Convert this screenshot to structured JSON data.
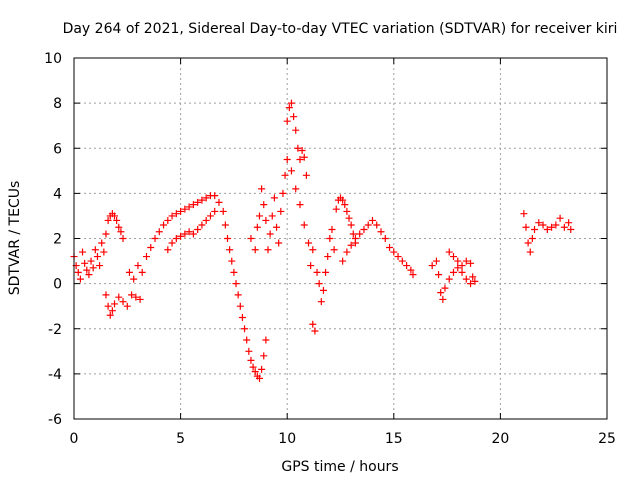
{
  "chart_data": {
    "type": "scatter",
    "title": "Day 264 of 2021, Sidereal Day-to-day VTEC variation (SDTVAR) for receiver kiri",
    "xlabel": "GPS time / hours",
    "ylabel": "SDTVAR / TECUs",
    "xlim": [
      0,
      25
    ],
    "ylim": [
      -6,
      10
    ],
    "xticks": [
      "0",
      "5",
      "10",
      "15",
      "20",
      "25"
    ],
    "yticks": [
      "-6",
      "-4",
      "-2",
      "0",
      "2",
      "4",
      "6",
      "8",
      "10"
    ],
    "xtick_values": [
      0,
      5,
      10,
      15,
      20,
      25
    ],
    "ytick_values": [
      -6,
      -4,
      -2,
      0,
      2,
      4,
      6,
      8,
      10
    ],
    "grid": true,
    "marker": "plus",
    "color": "#ff0000",
    "series": [
      {
        "name": "SDTVAR",
        "points": [
          [
            0.0,
            1.2
          ],
          [
            0.1,
            0.8
          ],
          [
            0.2,
            0.5
          ],
          [
            0.3,
            0.2
          ],
          [
            0.4,
            1.4
          ],
          [
            0.5,
            0.9
          ],
          [
            0.6,
            0.6
          ],
          [
            0.7,
            0.4
          ],
          [
            0.8,
            1.0
          ],
          [
            0.9,
            0.7
          ],
          [
            1.0,
            1.5
          ],
          [
            1.1,
            1.2
          ],
          [
            1.2,
            0.8
          ],
          [
            1.3,
            1.8
          ],
          [
            1.4,
            1.4
          ],
          [
            1.5,
            2.2
          ],
          [
            1.6,
            2.8
          ],
          [
            1.7,
            3.0
          ],
          [
            1.8,
            3.1
          ],
          [
            1.9,
            3.0
          ],
          [
            2.0,
            2.8
          ],
          [
            2.1,
            2.5
          ],
          [
            2.2,
            2.3
          ],
          [
            2.3,
            2.0
          ],
          [
            1.5,
            -0.5
          ],
          [
            1.6,
            -1.0
          ],
          [
            1.7,
            -1.4
          ],
          [
            1.8,
            -1.2
          ],
          [
            1.9,
            -0.9
          ],
          [
            2.1,
            -0.6
          ],
          [
            2.3,
            -0.8
          ],
          [
            2.5,
            -1.0
          ],
          [
            2.7,
            -0.5
          ],
          [
            2.9,
            -0.6
          ],
          [
            3.1,
            -0.7
          ],
          [
            2.6,
            0.5
          ],
          [
            2.8,
            0.2
          ],
          [
            3.0,
            0.8
          ],
          [
            3.2,
            0.5
          ],
          [
            3.4,
            1.2
          ],
          [
            3.6,
            1.6
          ],
          [
            3.8,
            2.0
          ],
          [
            4.0,
            2.3
          ],
          [
            4.2,
            2.6
          ],
          [
            4.4,
            2.8
          ],
          [
            4.6,
            3.0
          ],
          [
            4.8,
            3.1
          ],
          [
            5.0,
            3.2
          ],
          [
            5.2,
            3.3
          ],
          [
            5.4,
            3.4
          ],
          [
            5.6,
            3.5
          ],
          [
            5.8,
            3.6
          ],
          [
            6.0,
            3.7
          ],
          [
            6.2,
            3.8
          ],
          [
            6.4,
            3.9
          ],
          [
            6.6,
            3.9
          ],
          [
            4.4,
            1.5
          ],
          [
            4.6,
            1.8
          ],
          [
            4.8,
            2.0
          ],
          [
            5.0,
            2.1
          ],
          [
            5.2,
            2.2
          ],
          [
            5.4,
            2.3
          ],
          [
            5.6,
            2.2
          ],
          [
            5.8,
            2.4
          ],
          [
            6.0,
            2.6
          ],
          [
            6.2,
            2.8
          ],
          [
            6.4,
            3.0
          ],
          [
            6.6,
            3.2
          ],
          [
            6.8,
            3.6
          ],
          [
            7.0,
            3.2
          ],
          [
            7.1,
            2.6
          ],
          [
            7.2,
            2.0
          ],
          [
            7.3,
            1.5
          ],
          [
            7.4,
            1.0
          ],
          [
            7.5,
            0.5
          ],
          [
            7.6,
            0.0
          ],
          [
            7.7,
            -0.5
          ],
          [
            7.8,
            -1.0
          ],
          [
            7.9,
            -1.5
          ],
          [
            8.0,
            -2.0
          ],
          [
            8.1,
            -2.5
          ],
          [
            8.2,
            -3.0
          ],
          [
            8.3,
            -3.4
          ],
          [
            8.4,
            -3.7
          ],
          [
            8.5,
            -3.9
          ],
          [
            8.6,
            -4.1
          ],
          [
            8.7,
            -4.2
          ],
          [
            8.8,
            -3.8
          ],
          [
            8.9,
            -3.2
          ],
          [
            9.0,
            -2.5
          ],
          [
            8.3,
            2.0
          ],
          [
            8.5,
            1.5
          ],
          [
            8.6,
            2.5
          ],
          [
            8.7,
            3.0
          ],
          [
            8.8,
            4.2
          ],
          [
            8.9,
            3.5
          ],
          [
            9.0,
            2.8
          ],
          [
            9.1,
            1.5
          ],
          [
            9.2,
            2.2
          ],
          [
            9.3,
            3.0
          ],
          [
            9.4,
            3.8
          ],
          [
            9.5,
            2.5
          ],
          [
            9.6,
            1.8
          ],
          [
            9.7,
            3.2
          ],
          [
            9.8,
            4.0
          ],
          [
            9.9,
            4.8
          ],
          [
            10.0,
            5.5
          ],
          [
            10.0,
            7.2
          ],
          [
            10.1,
            7.8
          ],
          [
            10.2,
            8.0
          ],
          [
            10.3,
            7.4
          ],
          [
            10.4,
            6.8
          ],
          [
            10.5,
            6.0
          ],
          [
            10.6,
            5.5
          ],
          [
            10.7,
            5.9
          ],
          [
            10.8,
            5.6
          ],
          [
            10.9,
            4.8
          ],
          [
            10.2,
            5.0
          ],
          [
            10.4,
            4.2
          ],
          [
            10.6,
            3.5
          ],
          [
            10.8,
            2.6
          ],
          [
            11.0,
            1.8
          ],
          [
            11.1,
            0.8
          ],
          [
            11.2,
            -1.8
          ],
          [
            11.3,
            -2.1
          ],
          [
            11.2,
            1.5
          ],
          [
            11.4,
            0.5
          ],
          [
            11.5,
            0.0
          ],
          [
            11.6,
            -0.8
          ],
          [
            11.7,
            -0.3
          ],
          [
            11.8,
            0.5
          ],
          [
            11.9,
            1.2
          ],
          [
            12.0,
            2.0
          ],
          [
            12.1,
            2.4
          ],
          [
            12.2,
            1.5
          ],
          [
            12.3,
            3.3
          ],
          [
            12.4,
            3.7
          ],
          [
            12.5,
            3.8
          ],
          [
            12.6,
            3.7
          ],
          [
            12.7,
            3.5
          ],
          [
            12.8,
            3.2
          ],
          [
            12.9,
            2.9
          ],
          [
            13.0,
            2.6
          ],
          [
            13.1,
            2.2
          ],
          [
            13.2,
            1.8
          ],
          [
            12.6,
            1.0
          ],
          [
            12.8,
            1.4
          ],
          [
            13.0,
            1.7
          ],
          [
            13.2,
            2.0
          ],
          [
            13.4,
            2.2
          ],
          [
            13.6,
            2.4
          ],
          [
            13.8,
            2.6
          ],
          [
            14.0,
            2.8
          ],
          [
            14.2,
            2.6
          ],
          [
            14.4,
            2.3
          ],
          [
            14.6,
            2.0
          ],
          [
            14.8,
            1.6
          ],
          [
            15.0,
            1.4
          ],
          [
            15.2,
            1.2
          ],
          [
            15.4,
            1.0
          ],
          [
            15.6,
            0.8
          ],
          [
            15.8,
            0.6
          ],
          [
            15.9,
            0.4
          ],
          [
            16.8,
            0.8
          ],
          [
            17.0,
            1.0
          ],
          [
            17.1,
            0.4
          ],
          [
            17.2,
            -0.4
          ],
          [
            17.3,
            -0.7
          ],
          [
            17.4,
            -0.2
          ],
          [
            17.6,
            0.2
          ],
          [
            17.8,
            0.5
          ],
          [
            18.0,
            0.7
          ],
          [
            18.2,
            0.5
          ],
          [
            18.4,
            0.2
          ],
          [
            18.6,
            0.0
          ],
          [
            17.6,
            1.4
          ],
          [
            17.8,
            1.2
          ],
          [
            18.0,
            1.0
          ],
          [
            18.2,
            0.8
          ],
          [
            18.4,
            1.0
          ],
          [
            18.6,
            0.9
          ],
          [
            18.7,
            0.3
          ],
          [
            18.8,
            0.1
          ],
          [
            21.1,
            3.1
          ],
          [
            21.2,
            2.5
          ],
          [
            21.3,
            1.8
          ],
          [
            21.4,
            1.4
          ],
          [
            21.5,
            2.0
          ],
          [
            21.6,
            2.4
          ],
          [
            21.8,
            2.7
          ],
          [
            22.0,
            2.6
          ],
          [
            22.2,
            2.4
          ],
          [
            22.4,
            2.5
          ],
          [
            22.6,
            2.6
          ],
          [
            22.8,
            2.9
          ],
          [
            23.0,
            2.5
          ],
          [
            23.2,
            2.7
          ],
          [
            23.3,
            2.4
          ]
        ]
      }
    ]
  }
}
